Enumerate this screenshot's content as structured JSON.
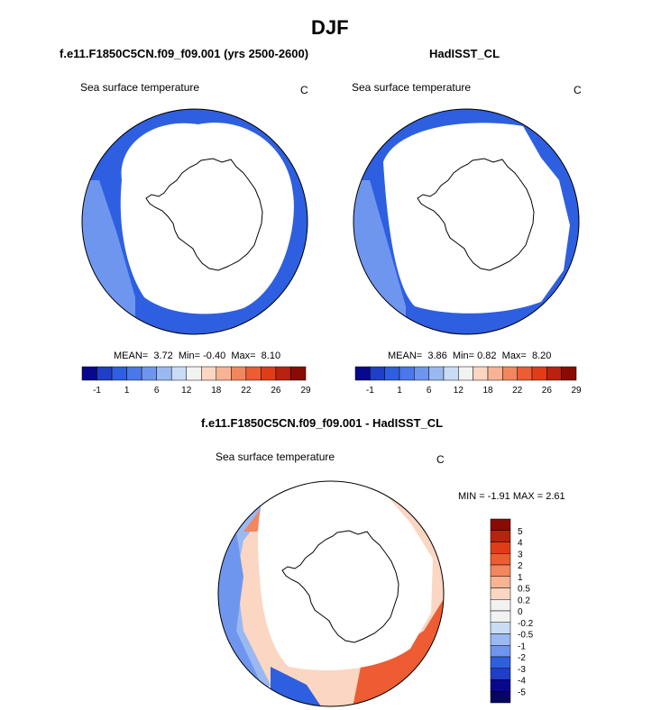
{
  "page": {
    "title": "DJF",
    "panel_left_title": "f.e11.F1850C5CN.f09_f09.001 (yrs 2500-2600)",
    "panel_right_title": "HadISST_CL",
    "panel_diff_title": "f.e11.F1850C5CN.f09_f09.001 - HadISST_CL"
  },
  "panels": {
    "left": {
      "variable": "Sea surface temperature",
      "units": "C",
      "stats": {
        "mean_label": "MEAN=",
        "mean": "3.72",
        "min_label": "Min=",
        "min": "-0.40",
        "max_label": "Max=",
        "max": "8.10"
      }
    },
    "right": {
      "variable": "Sea surface temperature",
      "units": "C",
      "stats": {
        "mean_label": "MEAN=",
        "mean": "3.86",
        "min_label": "Min=",
        "min": "0.82",
        "max_label": "Max=",
        "max": "8.20"
      }
    },
    "diff": {
      "variable": "Sea surface temperature",
      "units": "C",
      "stats_text": "MIN =  -1.91 MAX =  2.61"
    }
  },
  "colorbar_abs": {
    "labels": [
      "-1",
      "1",
      "6",
      "12",
      "18",
      "22",
      "26",
      "29"
    ],
    "colors": [
      "#08088c",
      "#1f3fc6",
      "#2e5fe0",
      "#4a78ea",
      "#6f96ee",
      "#9ab8f2",
      "#c9dcf6",
      "#f2f2f2",
      "#fbd6c2",
      "#f7b394",
      "#f2875e",
      "#ed5c32",
      "#e03c18",
      "#b8220e",
      "#8a0b04"
    ]
  },
  "colorbar_diff": {
    "labels": [
      "5",
      "4",
      "3",
      "2",
      "1",
      "0.5",
      "0.2",
      "0",
      "-0.2",
      "-0.5",
      "-1",
      "-2",
      "-3",
      "-4",
      "-5"
    ],
    "colors": [
      "#8a0b04",
      "#b8220e",
      "#e03c18",
      "#ed5c32",
      "#f2875e",
      "#f7b394",
      "#fbd6c2",
      "#f2f2f2",
      "#f2f2f2",
      "#c9dcf6",
      "#9ab8f2",
      "#6f96ee",
      "#2e5fe0",
      "#1f3fc6",
      "#08088c",
      "#06065e"
    ]
  },
  "map_colors": {
    "ocean_mid": "#2e5fe0",
    "ocean_light": "#6f96ee",
    "ocean_pale": "#9ab8f2",
    "warm": "#ed5c32",
    "warm_light": "#f7b394",
    "warm_pale": "#fbd6c2",
    "cool_dark": "#1f3fc6"
  }
}
